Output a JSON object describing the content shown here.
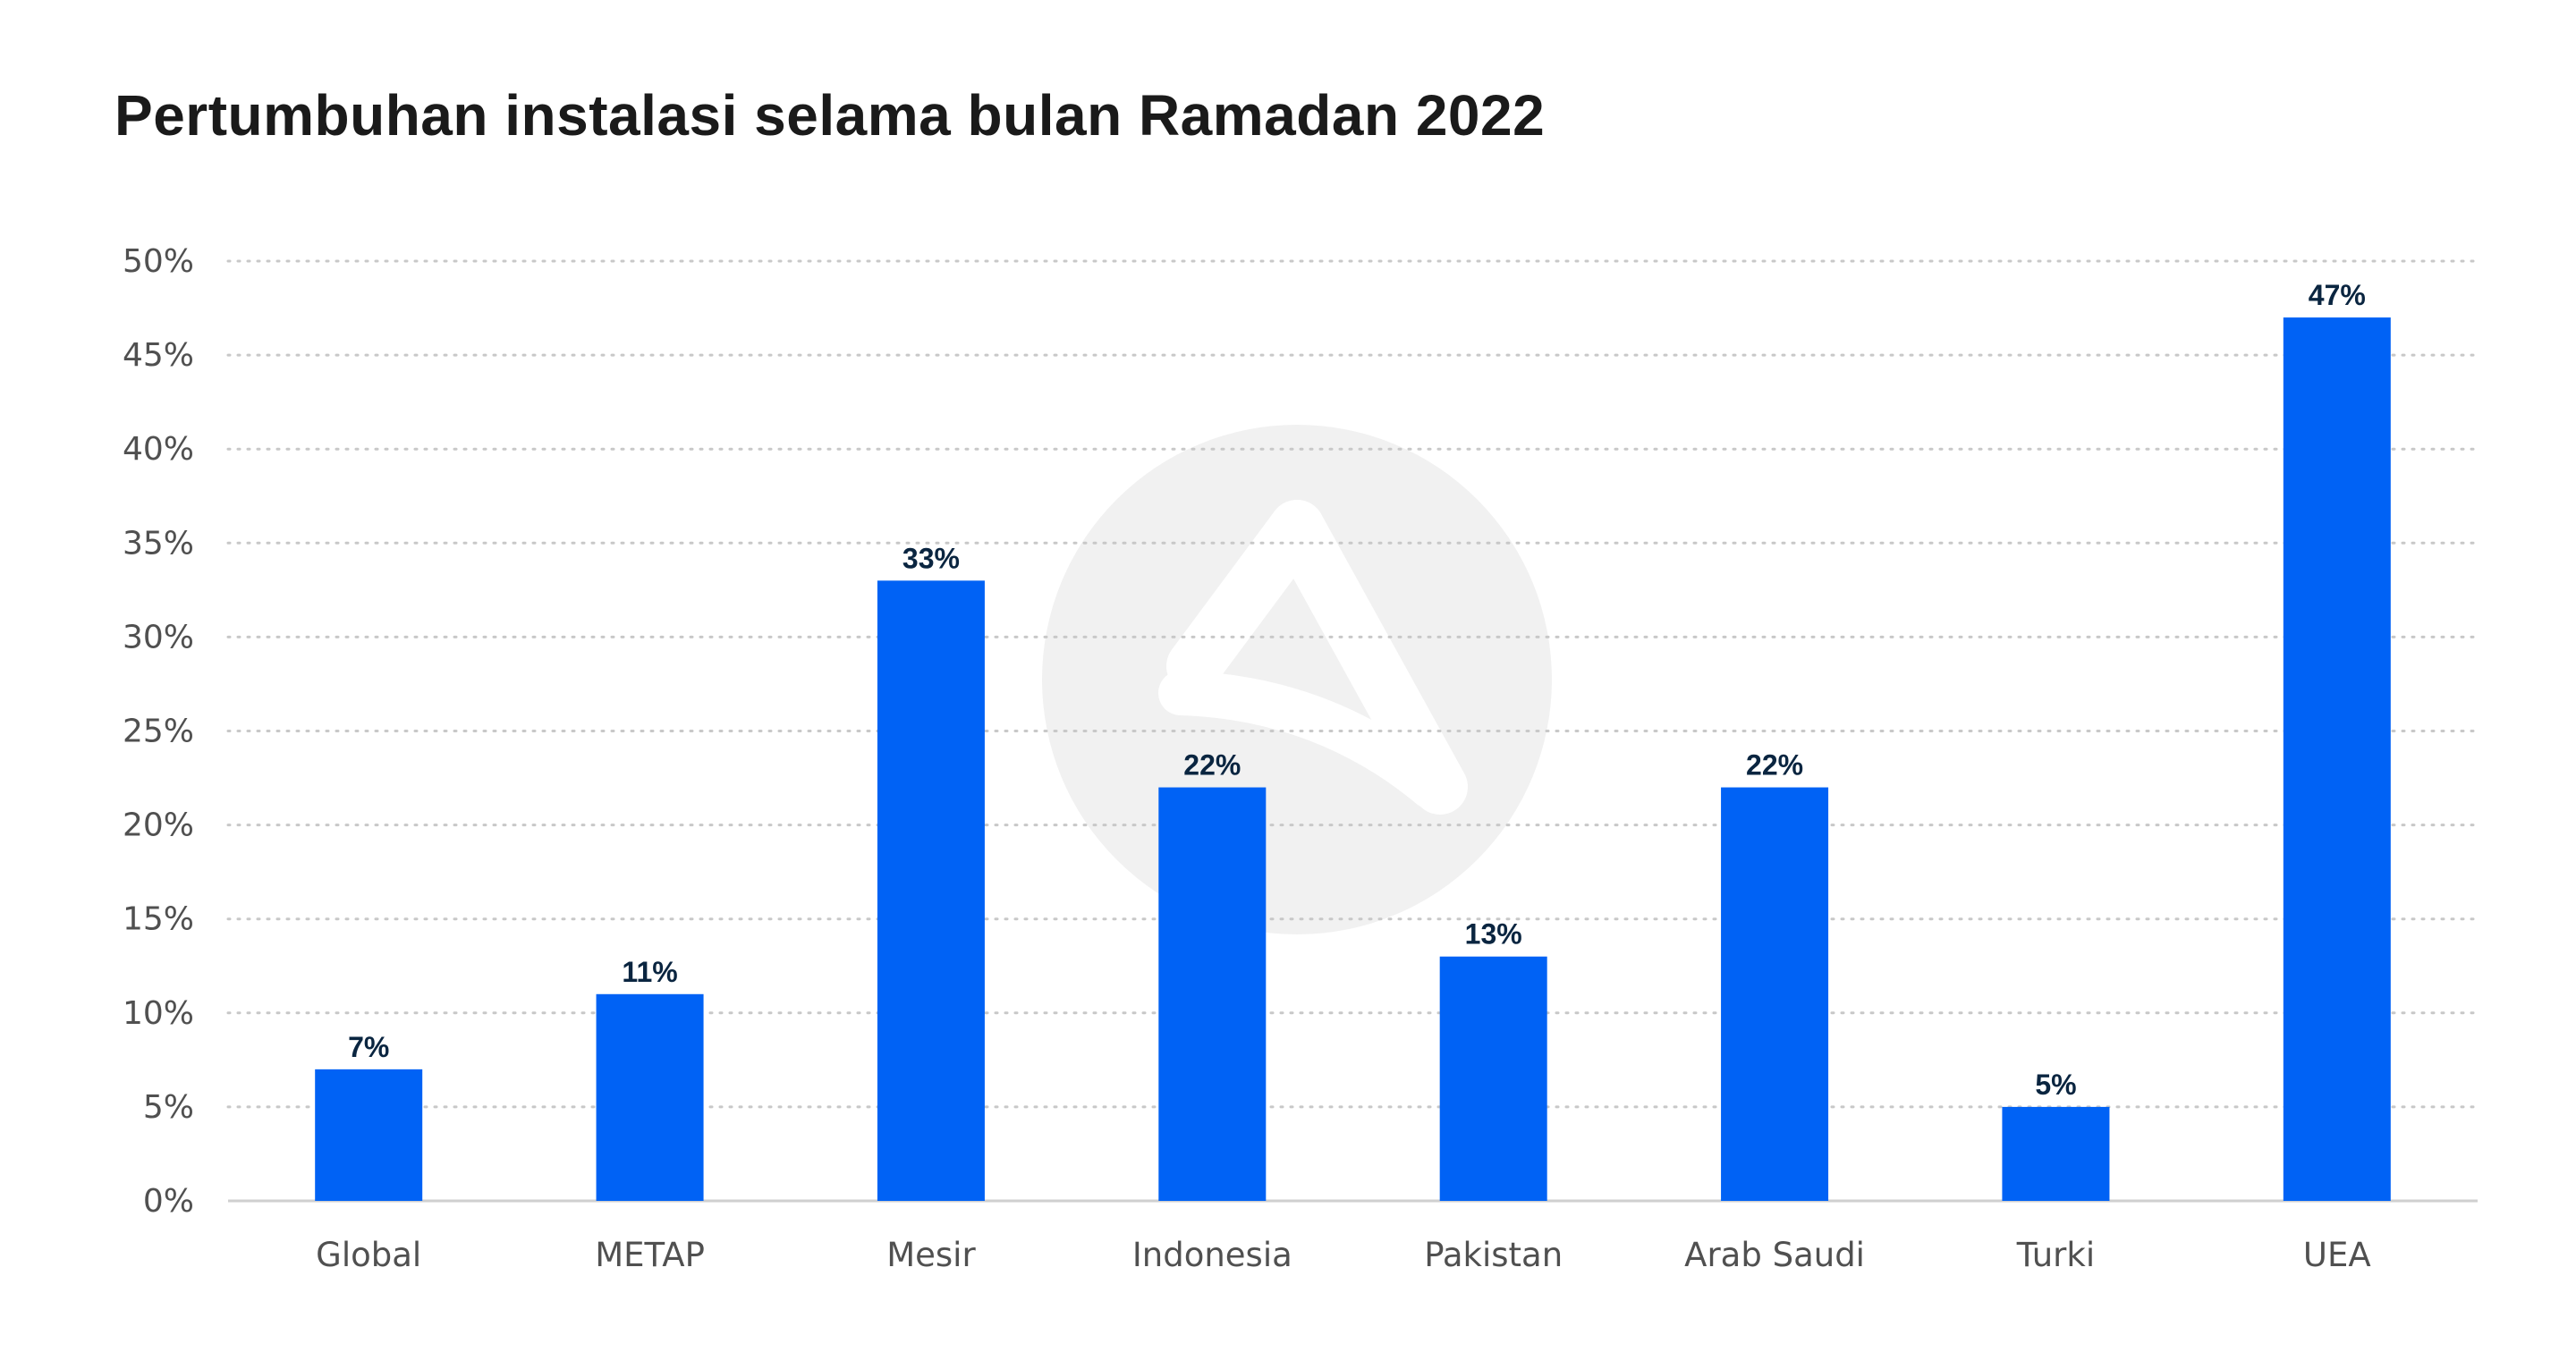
{
  "chart_data": {
    "type": "bar",
    "title": "Pertumbuhan instalasi selama bulan Ramadan 2022",
    "xlabel": "",
    "ylabel": "",
    "categories": [
      "Global",
      "METAP",
      "Mesir",
      "Indonesia",
      "Pakistan",
      "Arab Saudi",
      "Turki",
      "UEA"
    ],
    "values": [
      7,
      11,
      33,
      22,
      13,
      22,
      5,
      47
    ],
    "data_labels": [
      "7%",
      "11%",
      "33%",
      "22%",
      "13%",
      "22%",
      "5%",
      "47%"
    ],
    "ylim": [
      0,
      50
    ],
    "yticks": [
      0,
      5,
      10,
      15,
      20,
      25,
      30,
      35,
      40,
      45,
      50
    ],
    "ytick_labels": [
      "0%",
      "5%",
      "10%",
      "15%",
      "20%",
      "25%",
      "30%",
      "35%",
      "40%",
      "45%",
      "50%"
    ],
    "grid": true,
    "legend": "none",
    "colors": {
      "bar": "#0062f5",
      "grid": "#c8c8c8",
      "axis": "#cfcfcf",
      "watermark": "#f1f1f1"
    }
  },
  "watermark_icon": "logo-watermark-icon"
}
